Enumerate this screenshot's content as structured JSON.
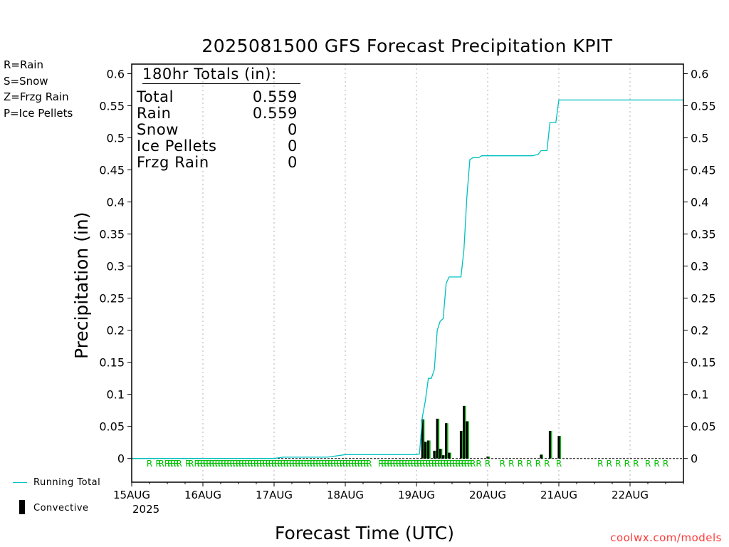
{
  "chart_data": {
    "type": "bar+line",
    "title": "2025081500 GFS Forecast Precipitation KPIT",
    "ylabel": "Precipitation (in)",
    "xlabel": "Forecast Time (UTC)",
    "ylim": [
      -0.037,
      0.615
    ],
    "yticks": [
      0,
      0.05,
      0.1,
      0.15,
      0.2,
      0.25,
      0.3,
      0.35,
      0.4,
      0.45,
      0.5,
      0.55,
      0.6
    ],
    "ytick_labels": [
      "0",
      "0.05",
      "0.1",
      "0.15",
      "0.2",
      "0.25",
      "0.3",
      "0.35",
      "0.4",
      "0.45",
      "0.5",
      "0.55",
      "0.6"
    ],
    "xlim_hours": [
      0,
      186
    ],
    "xticks": [
      {
        "hour": 0,
        "label": "15AUG"
      },
      {
        "hour": 24,
        "label": "16AUG"
      },
      {
        "hour": 48,
        "label": "17AUG"
      },
      {
        "hour": 72,
        "label": "18AUG"
      },
      {
        "hour": 96,
        "label": "19AUG"
      },
      {
        "hour": 120,
        "label": "20AUG"
      },
      {
        "hour": 144,
        "label": "21AUG"
      },
      {
        "hour": 168,
        "label": "22AUG"
      }
    ],
    "year_label": "2025",
    "grid": "vertical dotted at day boundaries",
    "series": [
      {
        "name": "Running Total",
        "color": "#00c0c0",
        "points": [
          [
            0,
            0
          ],
          [
            48,
            0
          ],
          [
            51,
            0.002
          ],
          [
            66,
            0.002
          ],
          [
            72,
            0.006
          ],
          [
            96,
            0.006
          ],
          [
            97,
            0.007
          ],
          [
            98,
            0.065
          ],
          [
            99,
            0.09
          ],
          [
            100,
            0.125
          ],
          [
            101,
            0.125
          ],
          [
            102,
            0.138
          ],
          [
            103,
            0.2
          ],
          [
            104,
            0.214
          ],
          [
            105,
            0.218
          ],
          [
            106,
            0.273
          ],
          [
            107,
            0.283
          ],
          [
            111,
            0.283
          ],
          [
            112,
            0.326
          ],
          [
            113,
            0.408
          ],
          [
            114,
            0.466
          ],
          [
            115,
            0.469
          ],
          [
            117,
            0.469
          ],
          [
            118,
            0.472
          ],
          [
            135,
            0.472
          ],
          [
            137,
            0.474
          ],
          [
            138,
            0.48
          ],
          [
            140,
            0.48
          ],
          [
            141,
            0.524
          ],
          [
            143,
            0.524
          ],
          [
            144,
            0.559
          ],
          [
            186,
            0.559
          ]
        ]
      }
    ],
    "bars": {
      "name": "Convective",
      "color": "#000000",
      "rain_color": "#00c000",
      "values": [
        [
          98,
          0.061
        ],
        [
          99,
          0.026
        ],
        [
          100,
          0.028
        ],
        [
          102,
          0.012
        ],
        [
          103,
          0.062
        ],
        [
          104,
          0.015
        ],
        [
          105,
          0.005
        ],
        [
          106,
          0.055
        ],
        [
          107,
          0.009
        ],
        [
          111,
          0.043
        ],
        [
          112,
          0.082
        ],
        [
          113,
          0.058
        ],
        [
          120,
          0.003
        ],
        [
          138,
          0.006
        ],
        [
          141,
          0.043
        ],
        [
          144,
          0.035
        ]
      ]
    },
    "ptype_markers": {
      "letter": "R",
      "hours": [
        6,
        9,
        10,
        12,
        13,
        14,
        15,
        16,
        19,
        20,
        22,
        23,
        24,
        25,
        26,
        27,
        28,
        29,
        30,
        31,
        32,
        33,
        34,
        35,
        36,
        37,
        38,
        39,
        40,
        41,
        42,
        43,
        44,
        45,
        46,
        47,
        48,
        49,
        50,
        51,
        52,
        53,
        54,
        55,
        56,
        57,
        58,
        59,
        60,
        61,
        62,
        63,
        64,
        65,
        66,
        67,
        68,
        69,
        70,
        71,
        72,
        73,
        74,
        75,
        76,
        77,
        78,
        79,
        80,
        84,
        85,
        86,
        87,
        88,
        89,
        90,
        91,
        92,
        93,
        94,
        95,
        96,
        97,
        98,
        99,
        100,
        101,
        102,
        103,
        104,
        105,
        106,
        107,
        108,
        109,
        110,
        111,
        112,
        113,
        114,
        115,
        117,
        120,
        125,
        128,
        131,
        134,
        137,
        140,
        144,
        158,
        161,
        164,
        167,
        170,
        174,
        177,
        180
      ]
    }
  },
  "legend": {
    "rain": "R=Rain",
    "snow": "S=Snow",
    "frzg": "Z=Frzg Rain",
    "ice": "P=Ice Pellets",
    "rain_color": "#00c000",
    "snow_color": "#3a3aff",
    "frzg_color": "#ff9a3a",
    "ice_color": "#ff3aa0",
    "running_total": "Running Total",
    "convective": "Convective"
  },
  "totals": {
    "header": "180hr Totals (in):",
    "rows": [
      {
        "label": "Total",
        "value": "0.559"
      },
      {
        "label": "Rain",
        "value": "0.559"
      },
      {
        "label": "Snow",
        "value": "0"
      },
      {
        "label": "Ice Pellets",
        "value": "0"
      },
      {
        "label": "Frzg Rain",
        "value": "0"
      }
    ]
  },
  "credit": "coolwx.com/models"
}
